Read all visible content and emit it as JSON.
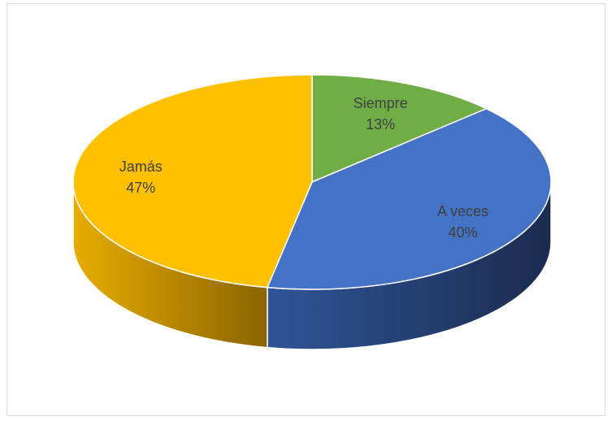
{
  "chart_data": {
    "type": "pie",
    "title": "",
    "style": "3d",
    "categories": [
      "Siempre",
      "A veces",
      "Jamás"
    ],
    "values": [
      13,
      40,
      47
    ],
    "labels": [
      {
        "category": "Siempre",
        "percent": "13%"
      },
      {
        "category": "A veces",
        "percent": "40%"
      },
      {
        "category": "Jamás",
        "percent": "47%"
      }
    ],
    "colors": {
      "Siempre": "#70ad47",
      "A veces": "#4472c4",
      "Jamás": "#ffc000"
    },
    "legend": "none"
  }
}
